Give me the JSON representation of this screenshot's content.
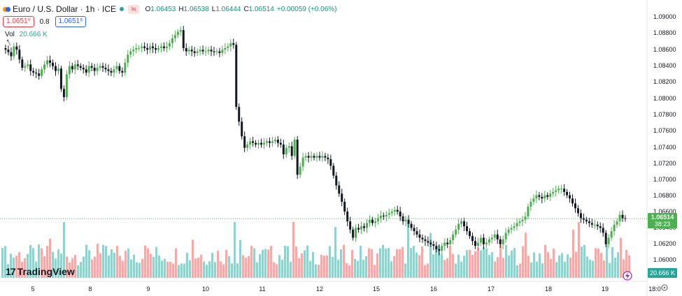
{
  "header": {
    "title": "Euro / U.S. Dollar · 1h · ICE",
    "market_badge": "≒",
    "ohlc": [
      {
        "label": "O",
        "value": "1.06453"
      },
      {
        "label": "H",
        "value": "1.06538"
      },
      {
        "label": "L",
        "value": "1.06444"
      },
      {
        "label": "C",
        "value": "1.06514"
      }
    ],
    "change": "+0.00059 (+0.06%)",
    "bid": "1.0651⁰",
    "spread": "0.8",
    "ask": "1.0651⁸"
  },
  "volume_indicator": {
    "label": "Vol",
    "value": "20.666 K"
  },
  "logo": {
    "mark": "17",
    "text": "TradingView"
  },
  "colors": {
    "up": "#26a69a",
    "down": "#ef5350",
    "candle_up": "#4caf50",
    "candle_down": "#131722",
    "price_tag": "#4caf50",
    "volume_tag": "#26a69a"
  },
  "icons": {
    "flash_icon": "flash-icon",
    "settings": "gear-icon"
  },
  "chart_data": {
    "type": "candlestick",
    "x_ticks": [
      "5",
      "8",
      "9",
      "10",
      "11",
      "12",
      "15",
      "16",
      "17",
      "18",
      "19",
      "18:0"
    ],
    "y_ticks": [
      "1.09000",
      "1.08800",
      "1.08600",
      "1.08400",
      "1.08200",
      "1.08000",
      "1.07800",
      "1.07600",
      "1.07400",
      "1.07200",
      "1.07000",
      "1.06800",
      "1.06600",
      "1.06400",
      "1.06200",
      "1.06000"
    ],
    "ylim": [
      1.059,
      1.0912
    ],
    "last_price": "1.06514",
    "countdown": "38:23",
    "last_volume": "20.666 K",
    "series": [
      {
        "name": "Price",
        "close_path": [
          [
            0,
            1.086
          ],
          [
            4,
            1.0858
          ],
          [
            8,
            1.0855
          ],
          [
            12,
            1.085
          ],
          [
            16,
            1.0862
          ],
          [
            20,
            1.0858
          ],
          [
            24,
            1.0846
          ],
          [
            28,
            1.0836
          ],
          [
            32,
            1.0838
          ],
          [
            36,
            1.084
          ],
          [
            40,
            1.0832
          ],
          [
            44,
            1.083
          ],
          [
            48,
            1.0829
          ],
          [
            52,
            1.0826
          ],
          [
            56,
            1.0834
          ],
          [
            60,
            1.084
          ],
          [
            64,
            1.0845
          ],
          [
            68,
            1.0842
          ],
          [
            72,
            1.0838
          ],
          [
            76,
            1.0832
          ],
          [
            80,
            1.0835
          ],
          [
            84,
            1.081
          ],
          [
            88,
            1.08
          ],
          [
            92,
            1.0828
          ],
          [
            96,
            1.0838
          ],
          [
            100,
            1.0834
          ],
          [
            104,
            1.084
          ],
          [
            108,
            1.0838
          ],
          [
            112,
            1.0836
          ],
          [
            116,
            1.0834
          ],
          [
            120,
            1.083
          ],
          [
            124,
            1.0838
          ],
          [
            128,
            1.0836
          ],
          [
            132,
            1.0832
          ],
          [
            136,
            1.0836
          ],
          [
            140,
            1.0838
          ],
          [
            144,
            1.0836
          ],
          [
            148,
            1.0834
          ],
          [
            152,
            1.0832
          ],
          [
            156,
            1.083
          ],
          [
            160,
            1.0834
          ],
          [
            164,
            1.0838
          ],
          [
            168,
            1.0832
          ],
          [
            172,
            1.083
          ],
          [
            176,
            1.0842
          ],
          [
            180,
            1.0852
          ],
          [
            184,
            1.0856
          ],
          [
            188,
            1.0858
          ],
          [
            192,
            1.086
          ],
          [
            196,
            1.086
          ],
          [
            200,
            1.0862
          ],
          [
            204,
            1.086
          ],
          [
            208,
            1.0858
          ],
          [
            212,
            1.0862
          ],
          [
            216,
            1.086
          ],
          [
            220,
            1.0858
          ],
          [
            224,
            1.086
          ],
          [
            228,
            1.0862
          ],
          [
            232,
            1.086
          ],
          [
            236,
            1.0862
          ],
          [
            240,
            1.0866
          ],
          [
            244,
            1.0872
          ],
          [
            248,
            1.0876
          ],
          [
            252,
            1.088
          ],
          [
            256,
            1.0882
          ],
          [
            260,
            1.086
          ],
          [
            264,
            1.0856
          ],
          [
            268,
            1.0858
          ],
          [
            272,
            1.0856
          ],
          [
            276,
            1.0854
          ],
          [
            280,
            1.0856
          ],
          [
            284,
            1.0858
          ],
          [
            288,
            1.0856
          ],
          [
            292,
            1.0856
          ],
          [
            296,
            1.0858
          ],
          [
            300,
            1.0856
          ],
          [
            304,
            1.0855
          ],
          [
            308,
            1.0856
          ],
          [
            312,
            1.0854
          ],
          [
            316,
            1.0858
          ],
          [
            320,
            1.086
          ],
          [
            324,
            1.0862
          ],
          [
            328,
            1.0866
          ],
          [
            332,
            1.0864
          ],
          [
            336,
            1.0788
          ],
          [
            340,
            1.077
          ],
          [
            344,
            1.0752
          ],
          [
            348,
            1.0738
          ],
          [
            352,
            1.0742
          ],
          [
            356,
            1.0746
          ],
          [
            360,
            1.0744
          ],
          [
            364,
            1.0742
          ],
          [
            368,
            1.0744
          ],
          [
            372,
            1.0742
          ],
          [
            376,
            1.0744
          ],
          [
            380,
            1.0746
          ],
          [
            384,
            1.0744
          ],
          [
            388,
            1.0746
          ],
          [
            392,
            1.0748
          ],
          [
            396,
            1.0744
          ],
          [
            400,
            1.0742
          ],
          [
            404,
            1.073
          ],
          [
            408,
            1.0738
          ],
          [
            412,
            1.074
          ],
          [
            416,
            1.0728
          ],
          [
            420,
            1.0748
          ],
          [
            424,
            1.0705
          ],
          [
            428,
            1.0715
          ],
          [
            432,
            1.0726
          ],
          [
            436,
            1.0728
          ],
          [
            440,
            1.0726
          ],
          [
            444,
            1.0728
          ],
          [
            448,
            1.0726
          ],
          [
            452,
            1.0728
          ],
          [
            456,
            1.0726
          ],
          [
            460,
            1.0728
          ],
          [
            464,
            1.0726
          ],
          [
            468,
            1.0724
          ],
          [
            472,
            1.0716
          ],
          [
            476,
            1.0704
          ],
          [
            480,
            1.0692
          ],
          [
            484,
            1.0682
          ],
          [
            488,
            1.0672
          ],
          [
            492,
            1.066
          ],
          [
            496,
            1.0648
          ],
          [
            500,
            1.0638
          ],
          [
            504,
            1.0628
          ],
          [
            508,
            1.064
          ],
          [
            512,
            1.0638
          ],
          [
            516,
            1.0642
          ],
          [
            520,
            1.064
          ],
          [
            524,
            1.0646
          ],
          [
            528,
            1.065
          ],
          [
            532,
            1.0646
          ],
          [
            536,
            1.0648
          ],
          [
            540,
            1.0652
          ],
          [
            544,
            1.0655
          ],
          [
            548,
            1.0654
          ],
          [
            552,
            1.0656
          ],
          [
            556,
            1.0658
          ],
          [
            560,
            1.066
          ],
          [
            564,
            1.0662
          ],
          [
            568,
            1.066
          ],
          [
            572,
            1.0654
          ],
          [
            576,
            1.0648
          ],
          [
            580,
            1.065
          ],
          [
            584,
            1.0645
          ],
          [
            588,
            1.064
          ],
          [
            592,
            1.0636
          ],
          [
            596,
            1.0632
          ],
          [
            600,
            1.0628
          ],
          [
            604,
            1.0626
          ],
          [
            608,
            1.0624
          ],
          [
            612,
            1.0622
          ],
          [
            616,
            1.062
          ],
          [
            620,
            1.0618
          ],
          [
            624,
            1.0614
          ],
          [
            628,
            1.0612
          ],
          [
            632,
            1.0618
          ],
          [
            636,
            1.0622
          ],
          [
            640,
            1.062
          ],
          [
            644,
            1.0625
          ],
          [
            648,
            1.0632
          ],
          [
            652,
            1.0638
          ],
          [
            656,
            1.0645
          ],
          [
            660,
            1.0648
          ],
          [
            664,
            1.0642
          ],
          [
            668,
            1.0636
          ],
          [
            672,
            1.063
          ],
          [
            676,
            1.0624
          ],
          [
            680,
            1.0618
          ],
          [
            684,
            1.0622
          ],
          [
            688,
            1.0628
          ],
          [
            692,
            1.062
          ],
          [
            696,
            1.0622
          ],
          [
            700,
            1.0626
          ],
          [
            704,
            1.0628
          ],
          [
            708,
            1.0632
          ],
          [
            712,
            1.0626
          ],
          [
            716,
            1.062
          ],
          [
            720,
            1.0626
          ],
          [
            724,
            1.0634
          ],
          [
            728,
            1.0638
          ],
          [
            732,
            1.064
          ],
          [
            736,
            1.0642
          ],
          [
            740,
            1.0646
          ],
          [
            744,
            1.0648
          ],
          [
            748,
            1.065
          ],
          [
            752,
            1.0654
          ],
          [
            756,
            1.0666
          ],
          [
            760,
            1.0672
          ],
          [
            764,
            1.0676
          ],
          [
            768,
            1.068
          ],
          [
            772,
            1.0678
          ],
          [
            776,
            1.0676
          ],
          [
            780,
            1.068
          ],
          [
            784,
            1.0678
          ],
          [
            788,
            1.0682
          ],
          [
            792,
            1.0684
          ],
          [
            796,
            1.0686
          ],
          [
            800,
            1.0688
          ],
          [
            804,
            1.0688
          ],
          [
            808,
            1.0684
          ],
          [
            812,
            1.068
          ],
          [
            816,
            1.0676
          ],
          [
            820,
            1.067
          ],
          [
            824,
            1.0664
          ],
          [
            828,
            1.0658
          ],
          [
            832,
            1.0652
          ],
          [
            836,
            1.065
          ],
          [
            840,
            1.0648
          ],
          [
            844,
            1.0646
          ],
          [
            848,
            1.0644
          ],
          [
            852,
            1.0644
          ],
          [
            856,
            1.0642
          ],
          [
            860,
            1.064
          ],
          [
            864,
            1.0634
          ],
          [
            868,
            1.062
          ],
          [
            872,
            1.0628
          ],
          [
            876,
            1.0636
          ],
          [
            880,
            1.0644
          ],
          [
            884,
            1.0648
          ],
          [
            888,
            1.0656
          ],
          [
            892,
            1.0652
          ],
          [
            896,
            1.0651
          ]
        ]
      }
    ]
  }
}
